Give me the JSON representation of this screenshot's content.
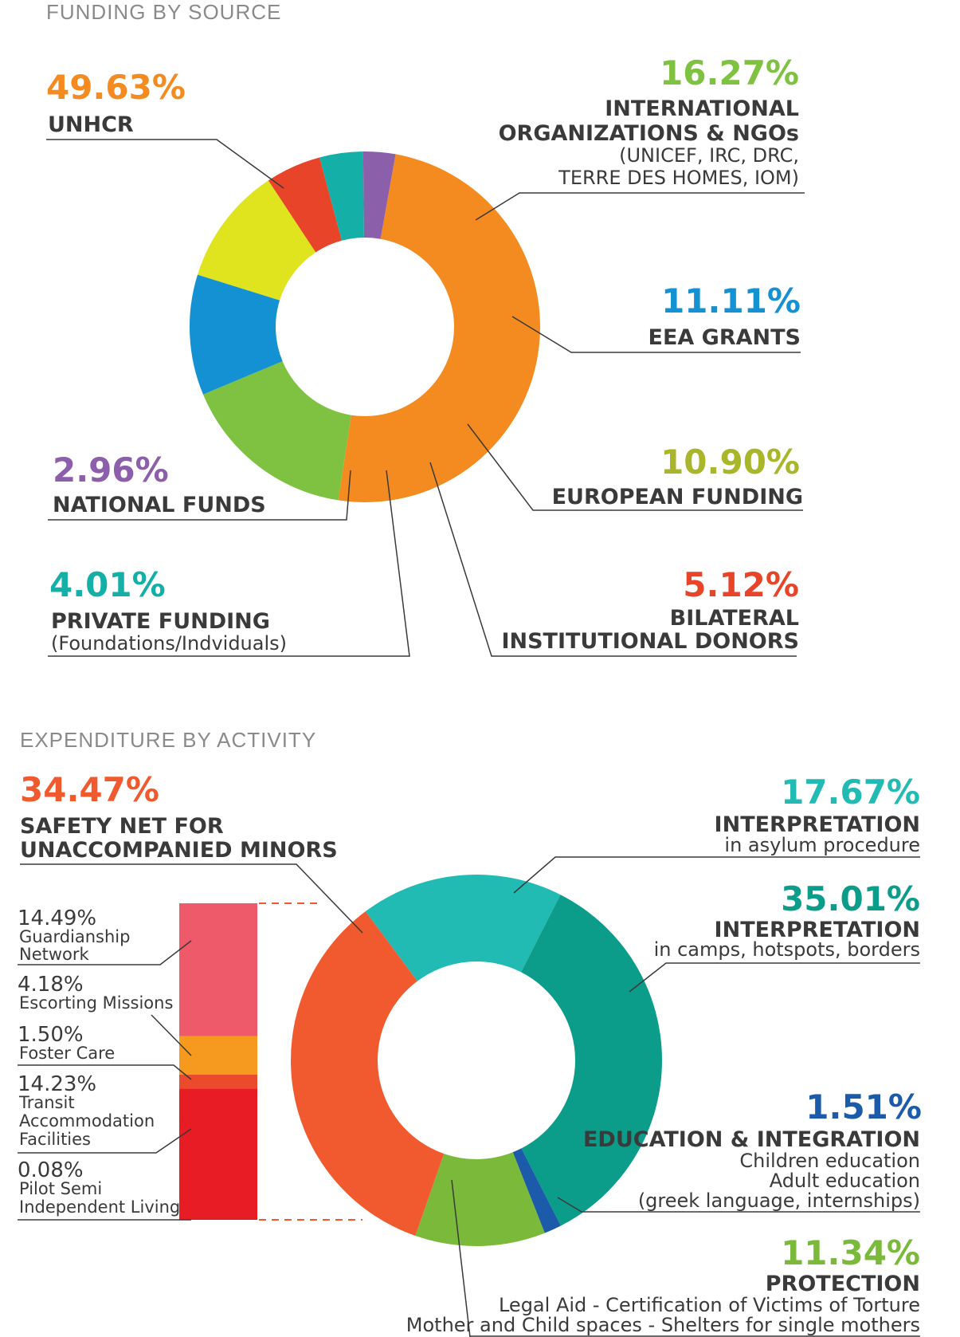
{
  "chart_data": [
    {
      "type": "pie",
      "title": "FUNDING BY SOURCE",
      "donut": true,
      "slices": [
        {
          "label": "UNHCR",
          "value": 49.63,
          "value_label": "49.63%",
          "color": "#F38B21",
          "sub": []
        },
        {
          "label": "INTERNATIONAL ORGANIZATIONS & NGOs",
          "value": 16.27,
          "value_label": "16.27%",
          "color": "#7FC241",
          "label_lines": [
            "INTERNATIONAL",
            "ORGANIZATIONS & NGOs"
          ],
          "sub": [
            "(UNICEF, IRC, DRC,",
            "TERRE DES HOMES, IOM)"
          ]
        },
        {
          "label": "EEA GRANTS",
          "value": 11.11,
          "value_label": "11.11%",
          "color": "#1491D3",
          "sub": []
        },
        {
          "label": "EUROPEAN FUNDING",
          "value": 10.9,
          "value_label": "10.90%",
          "color": "#DFE41E",
          "sub": []
        },
        {
          "label": "BILATERAL INSTITUTIONAL DONORS",
          "value": 5.12,
          "value_label": "5.12%",
          "color": "#E8442A",
          "label_lines": [
            "BILATERAL",
            "INSTITUTIONAL DONORS"
          ],
          "sub": []
        },
        {
          "label": "PRIVATE FUNDING",
          "value": 4.01,
          "value_label": "4.01%",
          "color": "#14AFA6",
          "sub": [
            "(Foundations/Indviduals)"
          ]
        },
        {
          "label": "NATIONAL FUNDS",
          "value": 2.96,
          "value_label": "2.96%",
          "color": "#8B5FAA",
          "sub": []
        }
      ]
    },
    {
      "type": "pie",
      "title": "EXPENDITURE BY ACTIVITY",
      "donut": true,
      "slices": [
        {
          "label": "INTERPRETATION",
          "value": 17.67,
          "value_label": "17.67%",
          "color": "#22BBB3",
          "sub": [
            "in asylum procedure"
          ]
        },
        {
          "label": "INTERPRETATION",
          "value": 35.01,
          "value_label": "35.01%",
          "color": "#0B9C8A",
          "sub": [
            "in camps, hotspots, borders"
          ]
        },
        {
          "label": "EDUCATION & INTEGRATION",
          "value": 1.51,
          "value_label": "1.51%",
          "color": "#1B5BAA",
          "sub": [
            "Children education",
            "Adult education",
            "(greek language, internships)"
          ]
        },
        {
          "label": "PROTECTION",
          "value": 11.34,
          "value_label": "11.34%",
          "color": "#7BB93A",
          "sub": [
            "Legal Aid - Certification of Victims of Torture",
            "Mother and Child spaces - Shelters for single mothers"
          ]
        },
        {
          "label": "SAFETY NET FOR UNACCOMPANIED MINORS",
          "value": 34.47,
          "value_label": "34.47%",
          "color": "#F05A2E",
          "label_lines": [
            "SAFETY NET FOR",
            "UNACCOMPANIED MINORS"
          ],
          "sub": []
        }
      ],
      "breakdown": {
        "type": "stacked-bar",
        "parent": "SAFETY NET FOR UNACCOMPANIED MINORS",
        "segments": [
          {
            "value": 14.49,
            "value_label": "14.49%",
            "label_lines": [
              "Guardianship",
              "Network"
            ],
            "color": "#EF5A6B"
          },
          {
            "value": 4.18,
            "value_label": "4.18%",
            "label_lines": [
              "Escorting Missions"
            ],
            "color": "#F59A1E"
          },
          {
            "value": 1.5,
            "value_label": "1.50%",
            "label_lines": [
              "Foster Care"
            ],
            "color": "#EC4A2C"
          },
          {
            "value": 14.23,
            "value_label": "14.23%",
            "label_lines": [
              "Transit",
              "Accommodation",
              "Facilities"
            ],
            "color": "#E81C24"
          },
          {
            "value": 0.08,
            "value_label": "0.08%",
            "label_lines": [
              "Pilot Semi",
              "Independent Living"
            ],
            "color": "#9E1B2E"
          }
        ]
      }
    }
  ]
}
